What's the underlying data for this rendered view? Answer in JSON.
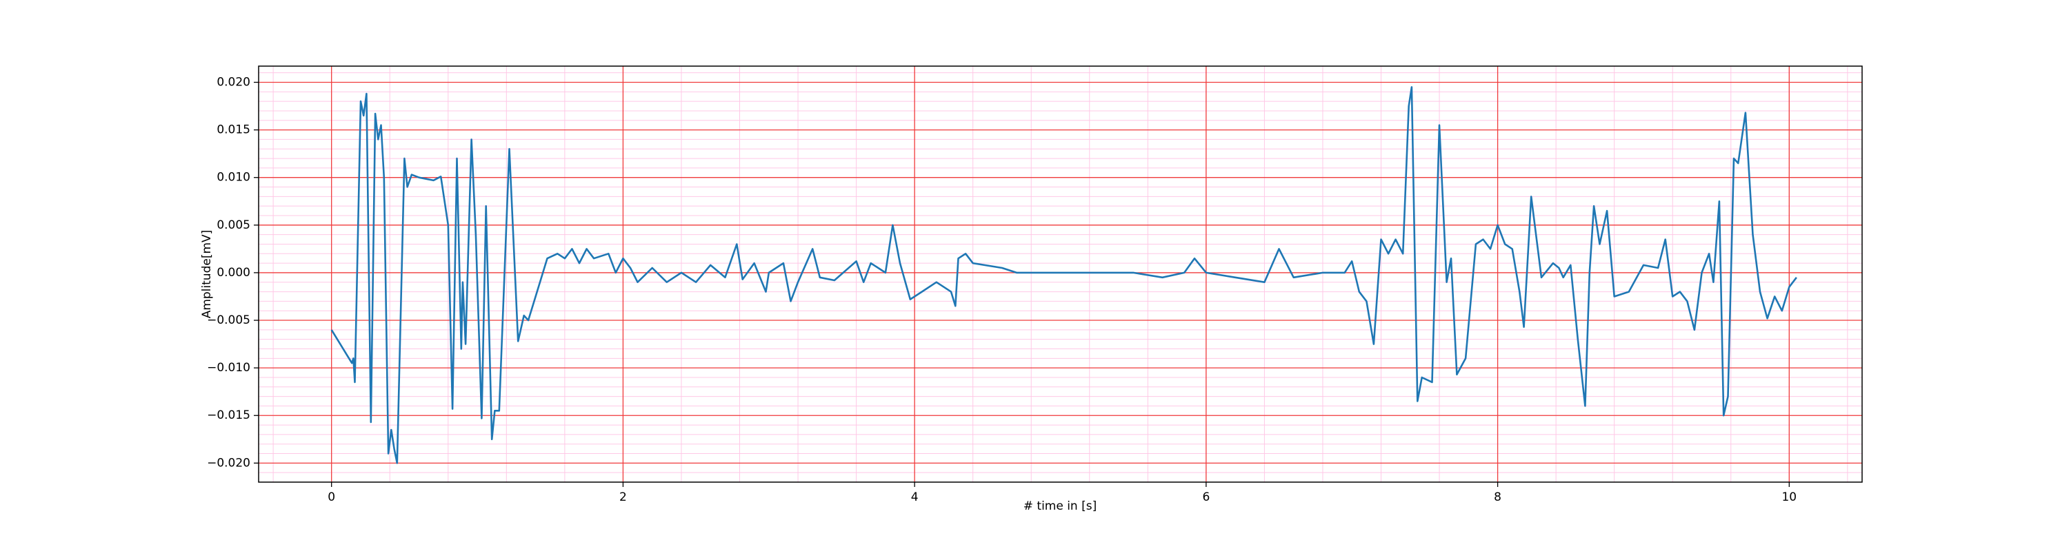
{
  "chart_data": {
    "type": "line",
    "xlabel": "# time in [s]",
    "ylabel": "Amplitude[mV]",
    "x": [
      0,
      0.1,
      0.14,
      0.15,
      0.16,
      0.2,
      0.22,
      0.24,
      0.27,
      0.3,
      0.32,
      0.34,
      0.36,
      0.39,
      0.41,
      0.43,
      0.45,
      0.5,
      0.52,
      0.55,
      0.6,
      0.7,
      0.75,
      0.8,
      0.83,
      0.86,
      0.89,
      0.9,
      0.92,
      0.96,
      0.99,
      1.03,
      1.06,
      1.1,
      1.12,
      1.15,
      1.22,
      1.28,
      1.32,
      1.35,
      1.4,
      1.48,
      1.55,
      1.6,
      1.65,
      1.7,
      1.75,
      1.8,
      1.9,
      1.95,
      2.0,
      2.05,
      2.1,
      2.2,
      2.3,
      2.4,
      2.5,
      2.6,
      2.7,
      2.78,
      2.82,
      2.9,
      2.98,
      3.0,
      3.1,
      3.15,
      3.2,
      3.3,
      3.35,
      3.45,
      3.6,
      3.65,
      3.7,
      3.8,
      3.85,
      3.9,
      3.97,
      4.05,
      4.15,
      4.25,
      4.28,
      4.3,
      4.35,
      4.4,
      4.6,
      4.7,
      5.0,
      5.5,
      5.7,
      5.85,
      5.92,
      6.0,
      6.2,
      6.4,
      6.5,
      6.6,
      6.8,
      6.95,
      7.0,
      7.05,
      7.1,
      7.15,
      7.2,
      7.25,
      7.3,
      7.35,
      7.39,
      7.41,
      7.45,
      7.48,
      7.55,
      7.6,
      7.65,
      7.68,
      7.72,
      7.78,
      7.85,
      7.9,
      7.95,
      8.0,
      8.05,
      8.1,
      8.15,
      8.18,
      8.23,
      8.3,
      8.38,
      8.42,
      8.45,
      8.5,
      8.55,
      8.6,
      8.63,
      8.66,
      8.7,
      8.75,
      8.8,
      8.9,
      9.0,
      9.1,
      9.15,
      9.2,
      9.25,
      9.3,
      9.35,
      9.4,
      9.45,
      9.48,
      9.52,
      9.55,
      9.58,
      9.62,
      9.65,
      9.7,
      9.75,
      9.8,
      9.85,
      9.9,
      9.95,
      10.0,
      10.05
    ],
    "values": [
      -0.006,
      -0.0085,
      -0.0095,
      -0.009,
      -0.0115,
      0.018,
      0.0165,
      0.0188,
      -0.0157,
      0.0167,
      0.014,
      0.0155,
      0.01,
      -0.019,
      -0.0165,
      -0.0185,
      -0.02,
      0.012,
      0.009,
      0.0103,
      0.01,
      0.0097,
      0.0101,
      0.005,
      -0.0143,
      0.012,
      -0.008,
      -0.001,
      -0.0075,
      0.014,
      0.004,
      -0.0153,
      0.007,
      -0.0175,
      -0.0145,
      -0.0145,
      0.013,
      -0.0072,
      -0.0045,
      -0.005,
      -0.0025,
      0.0015,
      0.002,
      0.0015,
      0.0025,
      0.001,
      0.0025,
      0.0015,
      0.002,
      0,
      0.0015,
      0.0005,
      -0.001,
      0.0005,
      -0.001,
      0,
      -0.001,
      0.0008,
      -0.0005,
      0.003,
      -0.0007,
      0.001,
      -0.002,
      0,
      0.001,
      -0.003,
      -0.001,
      0.0025,
      -0.0005,
      -0.0008,
      0.0012,
      -0.001,
      0.001,
      0,
      0.005,
      0.001,
      -0.0028,
      -0.002,
      -0.001,
      -0.002,
      -0.0035,
      0.0015,
      0.002,
      0.001,
      0.0005,
      0,
      0,
      0,
      -0.0005,
      0,
      0.0015,
      0,
      -0.0005,
      -0.001,
      0.0025,
      -0.0005,
      0,
      0,
      0.0012,
      -0.002,
      -0.003,
      -0.0075,
      0.0035,
      0.002,
      0.0035,
      0.002,
      0.0175,
      0.0195,
      -0.0135,
      -0.011,
      -0.0115,
      0.0155,
      -0.001,
      0.0015,
      -0.0107,
      -0.009,
      0.003,
      0.0035,
      0.0025,
      0.005,
      0.003,
      0.0025,
      -0.002,
      -0.0057,
      0.008,
      -0.0005,
      0.001,
      0.0005,
      -0.0005,
      0.0008,
      -0.007,
      -0.014,
      0,
      0.007,
      0.003,
      0.0065,
      -0.0025,
      -0.002,
      0.0008,
      0.0005,
      0.0035,
      -0.0025,
      -0.002,
      -0.003,
      -0.006,
      0,
      0.002,
      -0.001,
      0.0075,
      -0.015,
      -0.013,
      0.012,
      0.0115,
      0.0168,
      0.004,
      -0.002,
      -0.0048,
      -0.0025,
      -0.004,
      -0.0015,
      -0.0005
    ],
    "color": "#1f77b4",
    "xlim": [
      -0.5,
      10.5
    ],
    "xticks": [
      0,
      2,
      4,
      6,
      8,
      10
    ],
    "ylim": [
      -0.022,
      0.0217
    ],
    "yticks": [
      {
        "value": -0.02,
        "label": "−0.020"
      },
      {
        "value": -0.015,
        "label": "−0.015"
      },
      {
        "value": -0.01,
        "label": "−0.010"
      },
      {
        "value": -0.005,
        "label": "−0.005"
      },
      {
        "value": 0,
        "label": "0.000"
      },
      {
        "value": 0.005,
        "label": "0.005"
      },
      {
        "value": 0.01,
        "label": "0.010"
      },
      {
        "value": 0.015,
        "label": "0.015"
      },
      {
        "value": 0.02,
        "label": "0.020"
      }
    ],
    "grid": true,
    "grid_color": "#f03c3c",
    "minor_grid": true,
    "minor_grid_color": "#ffc8e6"
  }
}
